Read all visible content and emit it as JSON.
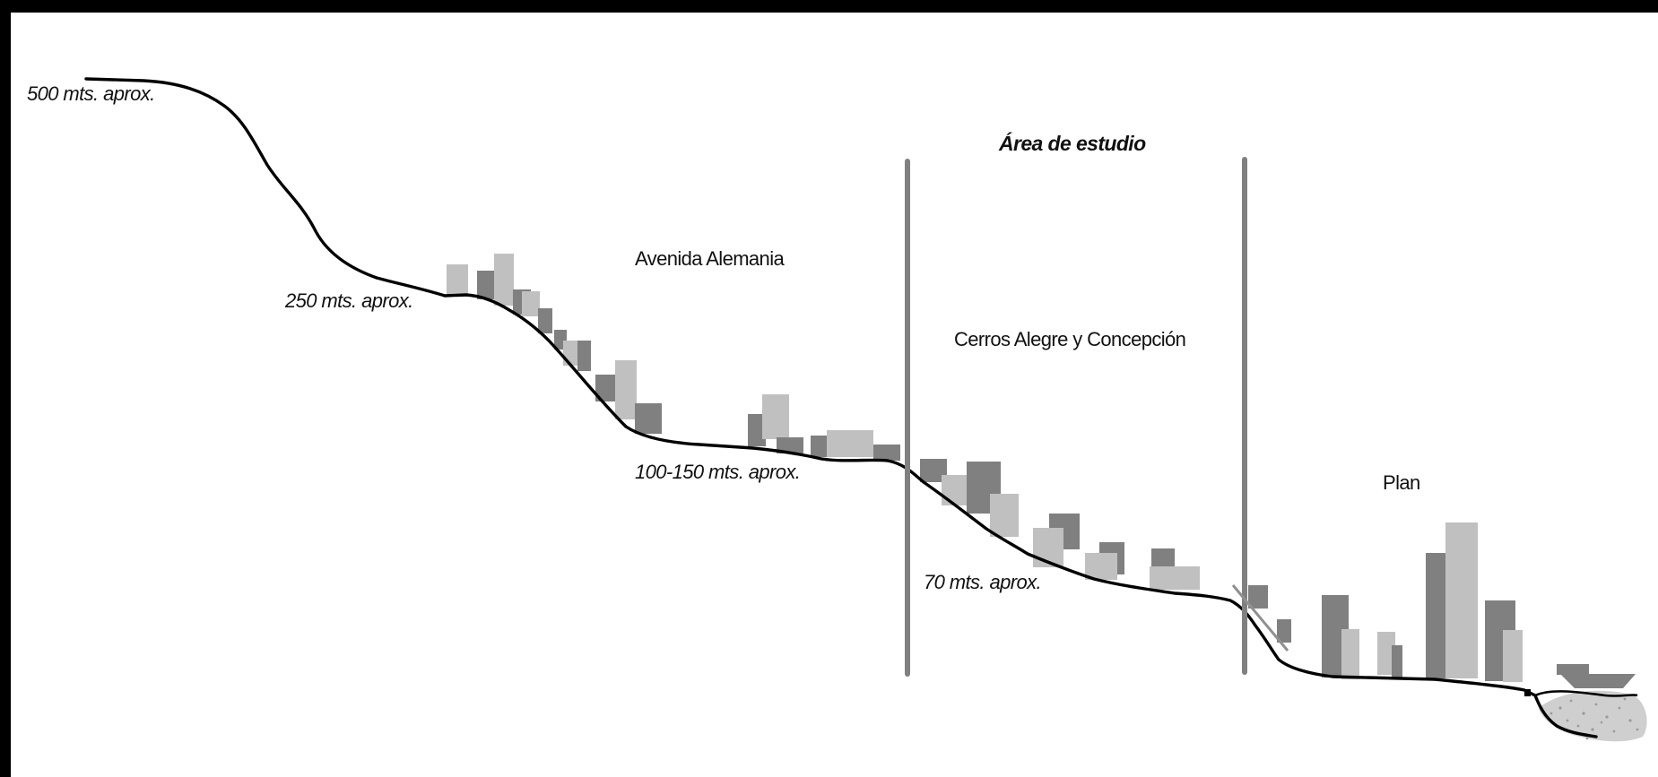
{
  "diagram": {
    "title": "Área de estudio",
    "zone_labels": {
      "avenida": "Avenida Alemania",
      "cerros": "Cerros Alegre y Concepción",
      "plan": "Plan"
    },
    "altitudes": {
      "a500": "500 mts. aprox.",
      "a250": "250 mts. aprox.",
      "a100": "100-150 mts. aprox.",
      "a70": "70 mts. aprox."
    },
    "colors": {
      "background": "#000000",
      "panel": "#ffffff",
      "terrain": "#000000",
      "building_dark": "#808080",
      "building_light": "#c0c0c0",
      "boundary": "#808080",
      "sea": "#c8c8c8"
    }
  }
}
